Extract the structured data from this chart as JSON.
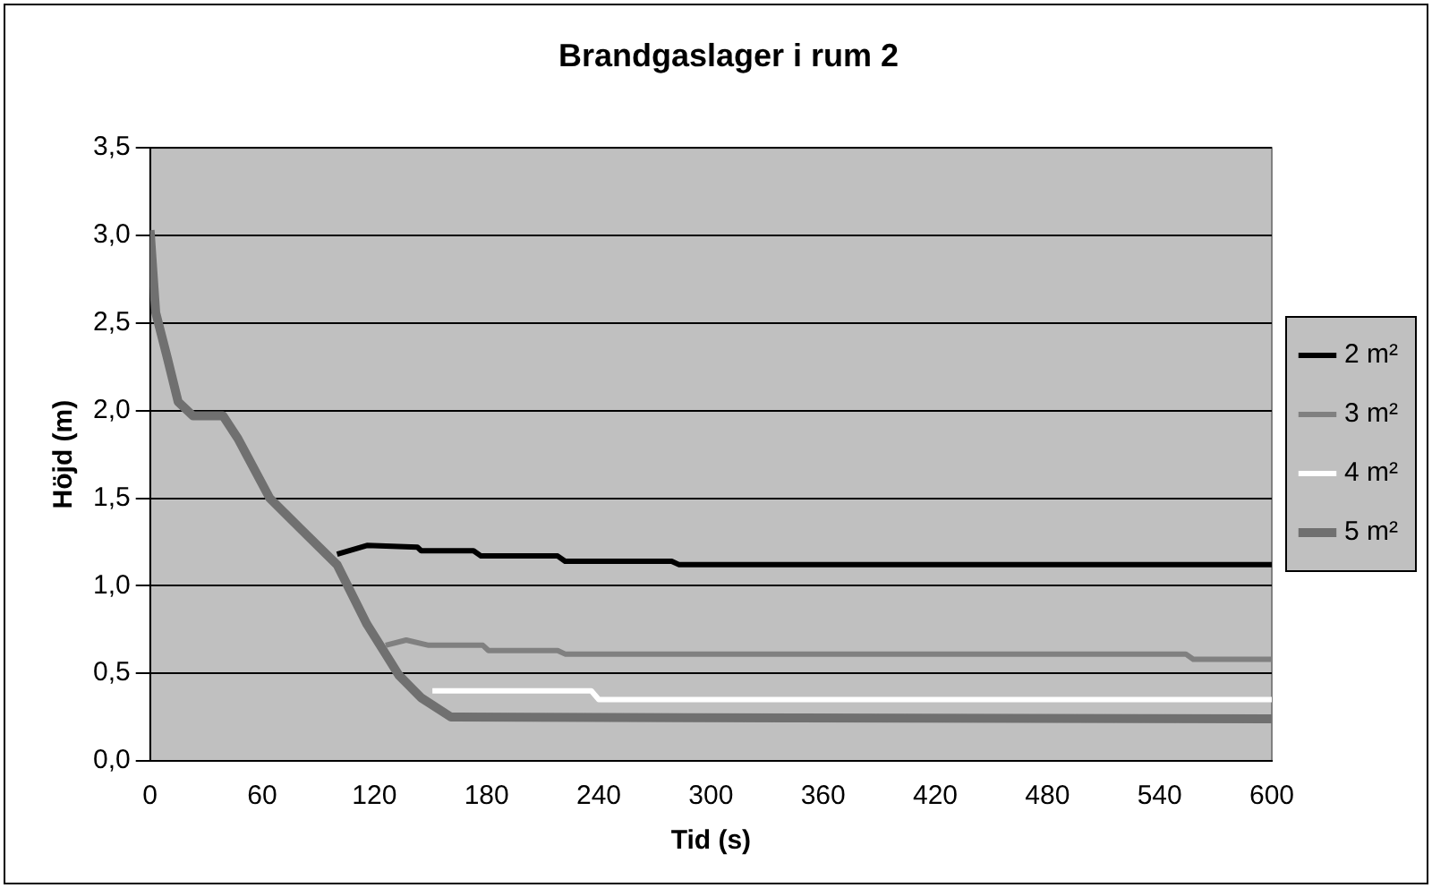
{
  "chart_data": {
    "type": "line",
    "title": "Brandgaslager i rum 2",
    "xlabel": "Tid (s)",
    "ylabel": "Höjd (m)",
    "xlim": [
      0,
      600
    ],
    "xticks": [
      0,
      60,
      120,
      180,
      240,
      300,
      360,
      420,
      480,
      540,
      600
    ],
    "ylim": [
      0,
      3.5
    ],
    "yticks": [
      {
        "value": 0,
        "label": "0,0"
      },
      {
        "value": 0.5,
        "label": "0,5"
      },
      {
        "value": 1,
        "label": "1,0"
      },
      {
        "value": 1.5,
        "label": "1,5"
      },
      {
        "value": 2,
        "label": "2,0"
      },
      {
        "value": 2.5,
        "label": "2,5"
      },
      {
        "value": 3,
        "label": "3,0"
      },
      {
        "value": 3.5,
        "label": "3,5"
      }
    ],
    "grid": "y",
    "legend": "right",
    "marker": "none",
    "line_style": "solid",
    "series": [
      {
        "name": "2 m²",
        "color": "#000000",
        "x": [
          100,
          116,
          143,
          145,
          173,
          177,
          218,
          222,
          279,
          283,
          600
        ],
        "values": [
          1.18,
          1.23,
          1.22,
          1.2,
          1.2,
          1.17,
          1.17,
          1.14,
          1.14,
          1.12,
          1.12
        ]
      },
      {
        "name": "3 m²",
        "color": "#808080",
        "x": [
          126,
          137,
          149,
          178,
          181,
          218,
          222,
          554,
          558,
          600
        ],
        "values": [
          0.66,
          0.69,
          0.66,
          0.66,
          0.63,
          0.63,
          0.61,
          0.61,
          0.58,
          0.58
        ]
      },
      {
        "name": "4 m²",
        "color": "#ffffff",
        "x": [
          151,
          236,
          240,
          600
        ],
        "values": [
          0.4,
          0.4,
          0.35,
          0.35
        ]
      },
      {
        "name": "5 m²",
        "color": "#707070",
        "x": [
          0,
          3,
          9,
          15,
          23,
          39,
          47,
          64,
          80,
          100,
          116,
          126,
          133,
          145,
          161,
          600
        ],
        "values": [
          3.03,
          2.56,
          2.31,
          2.05,
          1.97,
          1.97,
          1.84,
          1.5,
          1.33,
          1.12,
          0.78,
          0.61,
          0.49,
          0.36,
          0.25,
          0.24
        ]
      }
    ]
  }
}
